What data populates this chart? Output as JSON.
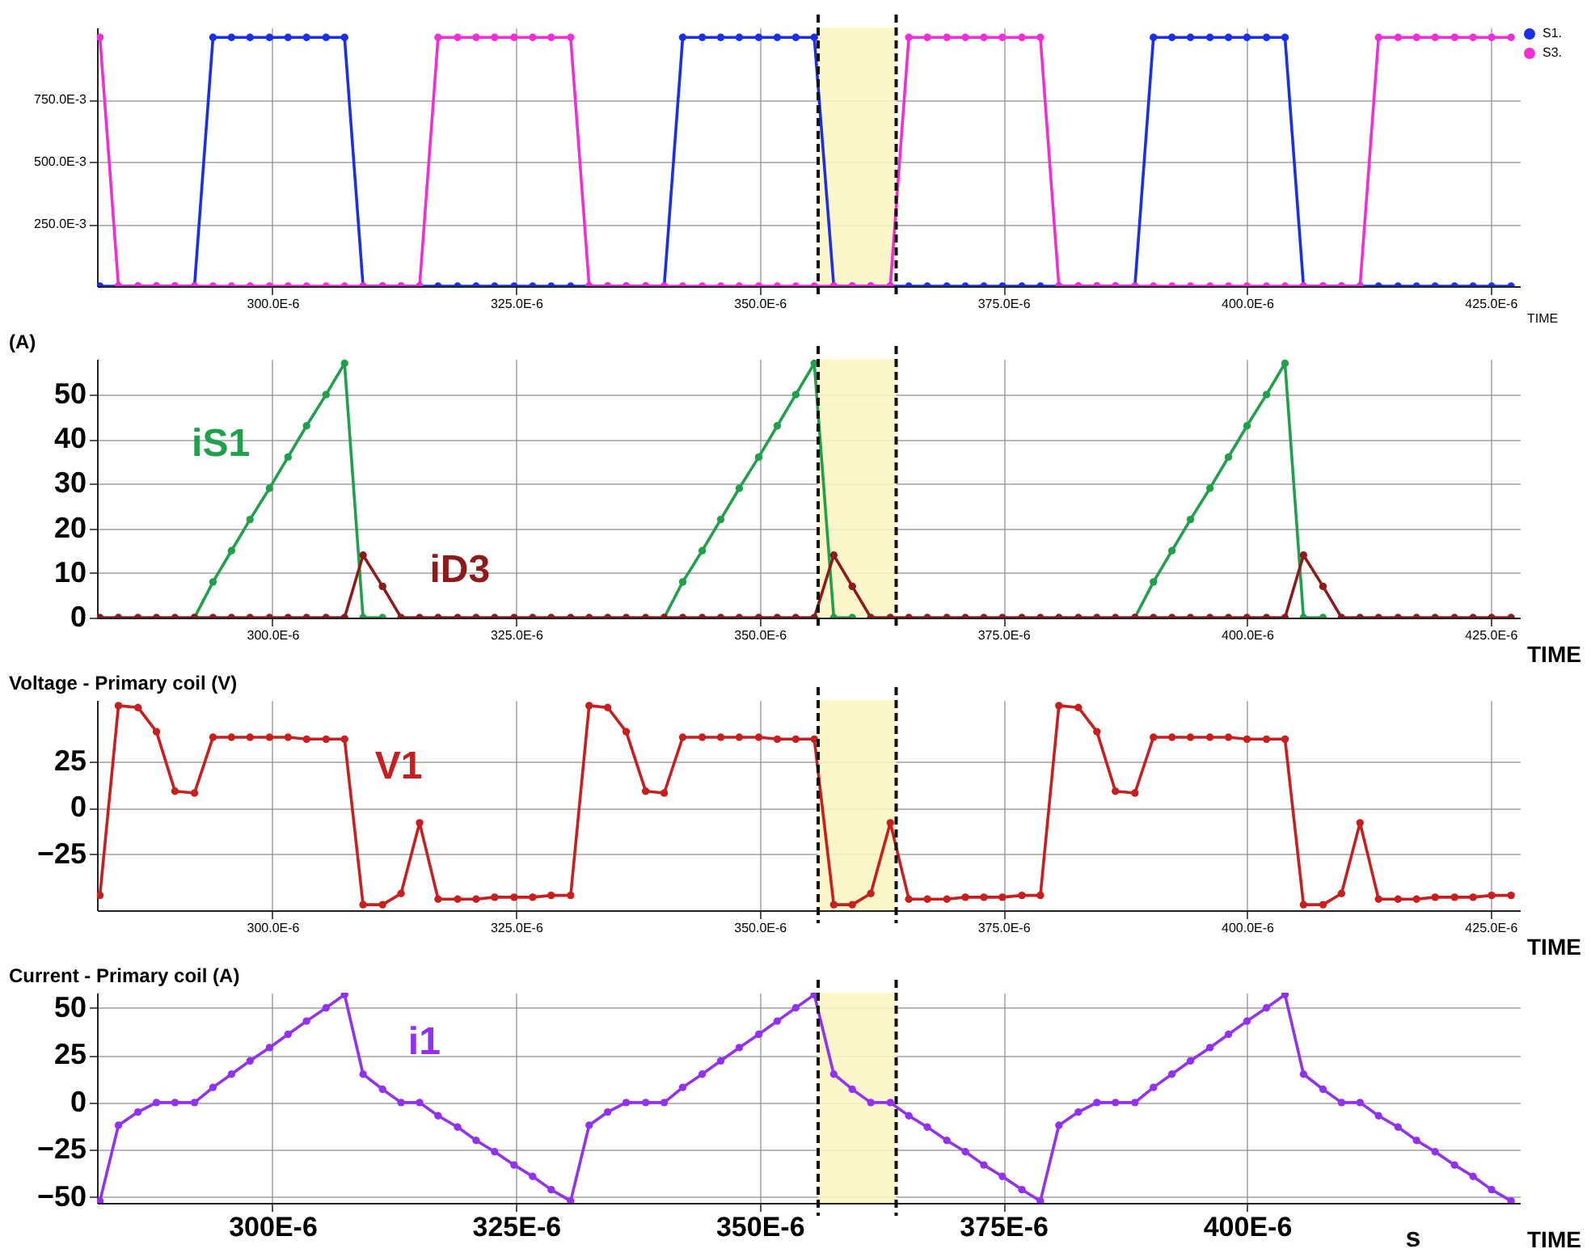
{
  "chart_data": [
    {
      "type": "line",
      "marker": "circle",
      "grid": true,
      "legend": "top right",
      "xlabel": "TIME",
      "x": [
        0.0002823,
        0.0002842,
        0.0002862,
        0.0002881,
        0.00029,
        0.000292,
        0.0002939,
        0.0002958,
        0.0002977,
        0.0002997,
        0.0003016,
        0.0003035,
        0.0003055,
        0.0003074,
        0.0003093,
        0.0003113,
        0.0003132,
        0.0003151,
        0.000317,
        0.000319,
        0.0003209,
        0.0003228,
        0.0003248,
        0.0003267,
        0.0003286,
        0.0003306,
        0.0003325,
        0.0003344,
        0.0003363,
        0.0003383,
        0.0003402,
        0.0003421,
        0.0003441,
        0.000346,
        0.0003479,
        0.0003499,
        0.0003518,
        0.0003537,
        0.0003556,
        0.0003576,
        0.0003595,
        0.0003614,
        0.0003634,
        0.0003653,
        0.0003672,
        0.0003692,
        0.0003711,
        0.000373,
        0.0003749,
        0.0003769,
        0.0003788,
        0.0003807,
        0.0003827,
        0.0003846,
        0.0003865,
        0.0003885,
        0.0003904,
        0.0003923,
        0.0003942,
        0.0003962,
        0.0003981,
        0.0004,
        0.000402,
        0.0004039,
        0.0004058,
        0.0004078,
        0.0004097,
        0.0004116,
        0.0004135,
        0.0004155,
        0.0004174,
        0.0004193,
        0.0004213,
        0.0004232,
        0.0004251,
        0.0004271
      ],
      "xlim": [
        0.000282,
        0.000428
      ],
      "xticks": [
        {
          "value": 0.0003,
          "label": "300.0E-6"
        },
        {
          "value": 0.000325,
          "label": "325.0E-6"
        },
        {
          "value": 0.00035,
          "label": "350.0E-6"
        },
        {
          "value": 0.000375,
          "label": "375.0E-6"
        },
        {
          "value": 0.0004,
          "label": "400.0E-6"
        },
        {
          "value": 0.000425,
          "label": "425.0E-6"
        }
      ],
      "ylim": [
        0,
        1.04
      ],
      "ref_lines": [
        {
          "axis": "x",
          "value": 0.000356,
          "color": "#111111",
          "line_style": "dashed"
        },
        {
          "axis": "x",
          "value": 0.000364,
          "color": "#111111",
          "line_style": "dashed"
        }
      ],
      "yticks": [
        {
          "value": 0.25,
          "label": "250.0E-3"
        },
        {
          "value": 0.5,
          "label": "500.0E-3"
        },
        {
          "value": 0.75,
          "label": "750.0E-3"
        }
      ],
      "bands": [
        {
          "axis": "x",
          "from": 0.000356,
          "to": 0.000364,
          "color": "#fbf6c2"
        }
      ],
      "series": [
        {
          "name": "S1.",
          "color": "#1a2fe6",
          "values": [
            0,
            0,
            0,
            0,
            0,
            0,
            1,
            1,
            1,
            1,
            1,
            1,
            1,
            1,
            0,
            0,
            0,
            0,
            0,
            0,
            0,
            0,
            0,
            0,
            0,
            0,
            0,
            0,
            0,
            0,
            0,
            1,
            1,
            1,
            1,
            1,
            1,
            1,
            1,
            0,
            0,
            0,
            0,
            0,
            0,
            0,
            0,
            0,
            0,
            0,
            0,
            0,
            0,
            0,
            0,
            0,
            1,
            1,
            1,
            1,
            1,
            1,
            1,
            1,
            0,
            0,
            0,
            0,
            0,
            0,
            0,
            0,
            0,
            0,
            0,
            0
          ]
        },
        {
          "name": "S3.",
          "color": "#f02ed6",
          "values": [
            1,
            0,
            0,
            0,
            0,
            0,
            0,
            0,
            0,
            0,
            0,
            0,
            0,
            0,
            0,
            0,
            0,
            0,
            1,
            1,
            1,
            1,
            1,
            1,
            1,
            1,
            0,
            0,
            0,
            0,
            0,
            0,
            0,
            0,
            0,
            0,
            0,
            0,
            0,
            0,
            0,
            0,
            0,
            1,
            1,
            1,
            1,
            1,
            1,
            1,
            1,
            0,
            0,
            0,
            0,
            0,
            0,
            0,
            0,
            0,
            0,
            0,
            0,
            0,
            0,
            0,
            0,
            0,
            1,
            1,
            1,
            1,
            1,
            1,
            1,
            1
          ]
        }
      ]
    },
    {
      "type": "line",
      "marker": "circle",
      "grid": true,
      "xlabel": "TIME",
      "ylabel": "(A)",
      "x": [
        0.0002823,
        0.0002842,
        0.0002862,
        0.0002881,
        0.00029,
        0.000292,
        0.0002939,
        0.0002958,
        0.0002977,
        0.0002997,
        0.0003016,
        0.0003035,
        0.0003055,
        0.0003074,
        0.0003093,
        0.0003113,
        0.0003132,
        0.0003151,
        0.000317,
        0.000319,
        0.0003209,
        0.0003228,
        0.0003248,
        0.0003267,
        0.0003286,
        0.0003306,
        0.0003325,
        0.0003344,
        0.0003363,
        0.0003383,
        0.0003402,
        0.0003421,
        0.0003441,
        0.000346,
        0.0003479,
        0.0003499,
        0.0003518,
        0.0003537,
        0.0003556,
        0.0003576,
        0.0003595,
        0.0003614,
        0.0003634,
        0.0003653,
        0.0003672,
        0.0003692,
        0.0003711,
        0.000373,
        0.0003749,
        0.0003769,
        0.0003788,
        0.0003807,
        0.0003827,
        0.0003846,
        0.0003865,
        0.0003885,
        0.0003904,
        0.0003923,
        0.0003942,
        0.0003962,
        0.0003981,
        0.0004,
        0.000402,
        0.0004039,
        0.0004058,
        0.0004078,
        0.0004097,
        0.0004116,
        0.0004135,
        0.0004155,
        0.0004174,
        0.0004193,
        0.0004213,
        0.0004232,
        0.0004251,
        0.0004271
      ],
      "xlim": [
        0.000282,
        0.000428
      ],
      "xticks": [
        {
          "value": 0.0003,
          "label": "300.0E-6"
        },
        {
          "value": 0.000325,
          "label": "325.0E-6"
        },
        {
          "value": 0.00035,
          "label": "350.0E-6"
        },
        {
          "value": 0.000375,
          "label": "375.0E-6"
        },
        {
          "value": 0.0004,
          "label": "400.0E-6"
        },
        {
          "value": 0.000425,
          "label": "425.0E-6"
        }
      ],
      "ylim": [
        0,
        58
      ],
      "yticks": [
        0,
        10,
        20,
        30,
        40,
        50
      ],
      "ref_lines": [
        {
          "axis": "x",
          "value": 0.000356,
          "color": "#111111",
          "line_style": "dashed"
        },
        {
          "axis": "x",
          "value": 0.000364,
          "color": "#111111",
          "line_style": "dashed"
        }
      ],
      "bands": [
        {
          "axis": "x",
          "from": 0.000356,
          "to": 0.000364,
          "color": "#fbf6c2"
        }
      ],
      "series": [
        {
          "name": "iS1",
          "color": "#21a04c",
          "values": [
            null,
            null,
            null,
            null,
            null,
            0,
            8,
            15,
            22,
            29,
            36,
            43,
            50,
            57,
            0,
            0,
            null,
            null,
            null,
            null,
            null,
            null,
            null,
            null,
            null,
            null,
            null,
            null,
            null,
            null,
            0,
            8,
            15,
            22,
            29,
            36,
            43,
            50,
            57,
            0,
            0,
            null,
            null,
            null,
            null,
            null,
            null,
            null,
            null,
            null,
            null,
            null,
            null,
            null,
            null,
            0,
            8,
            15,
            22,
            29,
            36,
            43,
            50,
            57,
            0,
            0,
            null,
            null,
            null,
            null,
            null,
            null,
            null,
            null,
            null,
            null
          ]
        },
        {
          "name": "iD3",
          "color": "#8e1b1b",
          "values": [
            0,
            0,
            0,
            0,
            0,
            0,
            0,
            0,
            0,
            0,
            0,
            0,
            0,
            0,
            14,
            7,
            0,
            0,
            0,
            0,
            0,
            0,
            0,
            0,
            0,
            0,
            0,
            0,
            0,
            0,
            0,
            0,
            0,
            0,
            0,
            0,
            0,
            0,
            0,
            14,
            7,
            0,
            0,
            0,
            0,
            0,
            0,
            0,
            0,
            0,
            0,
            0,
            0,
            0,
            0,
            0,
            0,
            0,
            0,
            0,
            0,
            0,
            0,
            0,
            14,
            7,
            0,
            0,
            0,
            0,
            0,
            0,
            0,
            0,
            0,
            0
          ]
        }
      ]
    },
    {
      "type": "line",
      "marker": "circle",
      "grid": true,
      "xlabel": "TIME",
      "ylabel": "Voltage - Primary coil (V)",
      "x": [
        0.0002823,
        0.0002842,
        0.0002862,
        0.0002881,
        0.00029,
        0.000292,
        0.0002939,
        0.0002958,
        0.0002977,
        0.0002997,
        0.0003016,
        0.0003035,
        0.0003055,
        0.0003074,
        0.0003093,
        0.0003113,
        0.0003132,
        0.0003151,
        0.000317,
        0.000319,
        0.0003209,
        0.0003228,
        0.0003248,
        0.0003267,
        0.0003286,
        0.0003306,
        0.0003325,
        0.0003344,
        0.0003363,
        0.0003383,
        0.0003402,
        0.0003421,
        0.0003441,
        0.000346,
        0.0003479,
        0.0003499,
        0.0003518,
        0.0003537,
        0.0003556,
        0.0003576,
        0.0003595,
        0.0003614,
        0.0003634,
        0.0003653,
        0.0003672,
        0.0003692,
        0.0003711,
        0.000373,
        0.0003749,
        0.0003769,
        0.0003788,
        0.0003807,
        0.0003827,
        0.0003846,
        0.0003865,
        0.0003885,
        0.0003904,
        0.0003923,
        0.0003942,
        0.0003962,
        0.0003981,
        0.0004,
        0.000402,
        0.0004039,
        0.0004058,
        0.0004078,
        0.0004097,
        0.0004116,
        0.0004135,
        0.0004155,
        0.0004174,
        0.0004193,
        0.0004213,
        0.0004232,
        0.0004251,
        0.0004271
      ],
      "xlim": [
        0.000282,
        0.000428
      ],
      "xticks": [
        {
          "value": 0.0003,
          "label": "300.0E-6"
        },
        {
          "value": 0.000325,
          "label": "325.0E-6"
        },
        {
          "value": 0.00035,
          "label": "350.0E-6"
        },
        {
          "value": 0.000375,
          "label": "375.0E-6"
        },
        {
          "value": 0.0004,
          "label": "400.0E-6"
        },
        {
          "value": 0.000425,
          "label": "425.0E-6"
        }
      ],
      "ylim": [
        -55,
        58
      ],
      "yticks": [
        -25,
        0,
        25
      ],
      "ref_lines": [
        {
          "axis": "x",
          "value": 0.000356,
          "color": "#111111",
          "line_style": "dashed"
        },
        {
          "axis": "x",
          "value": 0.000364,
          "color": "#111111",
          "line_style": "dashed"
        }
      ],
      "bands": [
        {
          "axis": "x",
          "from": 0.000356,
          "to": 0.000364,
          "color": "#fbf6c2"
        }
      ],
      "series": [
        {
          "name": "V1",
          "color": "#c81e1e",
          "values": [
            -47,
            55,
            54,
            41,
            9,
            8,
            38,
            38,
            38,
            38,
            38,
            37,
            37,
            37,
            -52,
            -52,
            -46,
            -8,
            -49,
            -49,
            -49,
            -48,
            -48,
            -48,
            -47,
            -47,
            55,
            54,
            41,
            9,
            8,
            38,
            38,
            38,
            38,
            38,
            37,
            37,
            37,
            -52,
            -52,
            -46,
            -8,
            -49,
            -49,
            -49,
            -48,
            -48,
            -48,
            -47,
            -47,
            55,
            54,
            41,
            9,
            8,
            38,
            38,
            38,
            38,
            38,
            37,
            37,
            37,
            -52,
            -52,
            -46,
            -8,
            -49,
            -49,
            -49,
            -48,
            -48,
            -48,
            -47,
            -47
          ]
        }
      ]
    },
    {
      "type": "line",
      "marker": "circle",
      "grid": true,
      "xlabel": "TIME",
      "ylabel": "Current - Primary coil (A)",
      "annotations": [
        "s"
      ],
      "x": [
        0.0002823,
        0.0002842,
        0.0002862,
        0.0002881,
        0.00029,
        0.000292,
        0.0002939,
        0.0002958,
        0.0002977,
        0.0002997,
        0.0003016,
        0.0003035,
        0.0003055,
        0.0003074,
        0.0003093,
        0.0003113,
        0.0003132,
        0.0003151,
        0.000317,
        0.000319,
        0.0003209,
        0.0003228,
        0.0003248,
        0.0003267,
        0.0003286,
        0.0003306,
        0.0003325,
        0.0003344,
        0.0003363,
        0.0003383,
        0.0003402,
        0.0003421,
        0.0003441,
        0.000346,
        0.0003479,
        0.0003499,
        0.0003518,
        0.0003537,
        0.0003556,
        0.0003576,
        0.0003595,
        0.0003614,
        0.0003634,
        0.0003653,
        0.0003672,
        0.0003692,
        0.0003711,
        0.000373,
        0.0003749,
        0.0003769,
        0.0003788,
        0.0003807,
        0.0003827,
        0.0003846,
        0.0003865,
        0.0003885,
        0.0003904,
        0.0003923,
        0.0003942,
        0.0003962,
        0.0003981,
        0.0004,
        0.000402,
        0.0004039,
        0.0004058,
        0.0004078,
        0.0004097,
        0.0004116,
        0.0004135,
        0.0004155,
        0.0004174,
        0.0004193,
        0.0004213,
        0.0004232,
        0.0004251,
        0.0004271
      ],
      "xlim": [
        0.000282,
        0.000428
      ],
      "xticks": [
        {
          "value": 0.0003,
          "label": "300E-6"
        },
        {
          "value": 0.000325,
          "label": "325E-6"
        },
        {
          "value": 0.00035,
          "label": "350E-6"
        },
        {
          "value": 0.000375,
          "label": "375E-6"
        },
        {
          "value": 0.0004,
          "label": "400E-6"
        }
      ],
      "ylim": [
        -53,
        58
      ],
      "yticks": [
        -50,
        -25,
        0,
        25,
        50
      ],
      "ref_lines": [
        {
          "axis": "x",
          "value": 0.000356,
          "color": "#111111",
          "line_style": "dashed"
        },
        {
          "axis": "x",
          "value": 0.000364,
          "color": "#111111",
          "line_style": "dashed"
        }
      ],
      "bands": [
        {
          "axis": "x",
          "from": 0.000356,
          "to": 0.000364,
          "color": "#fbf6c2"
        }
      ],
      "series": [
        {
          "name": "i1",
          "color": "#9232f0",
          "values": [
            -52,
            -12,
            -5,
            0,
            0,
            0,
            8,
            15,
            22,
            29,
            36,
            43,
            50,
            57,
            15,
            7,
            0,
            0,
            -7,
            -13,
            -20,
            -26,
            -33,
            -39,
            -46,
            -52,
            -12,
            -5,
            0,
            0,
            0,
            8,
            15,
            22,
            29,
            36,
            43,
            50,
            57,
            15,
            7,
            0,
            0,
            -7,
            -13,
            -20,
            -26,
            -33,
            -39,
            -46,
            -52,
            -12,
            -5,
            0,
            0,
            0,
            8,
            15,
            22,
            29,
            36,
            43,
            50,
            57,
            15,
            7,
            0,
            0,
            -7,
            -13,
            -20,
            -26,
            -33,
            -39,
            -46,
            -52
          ]
        }
      ]
    }
  ]
}
